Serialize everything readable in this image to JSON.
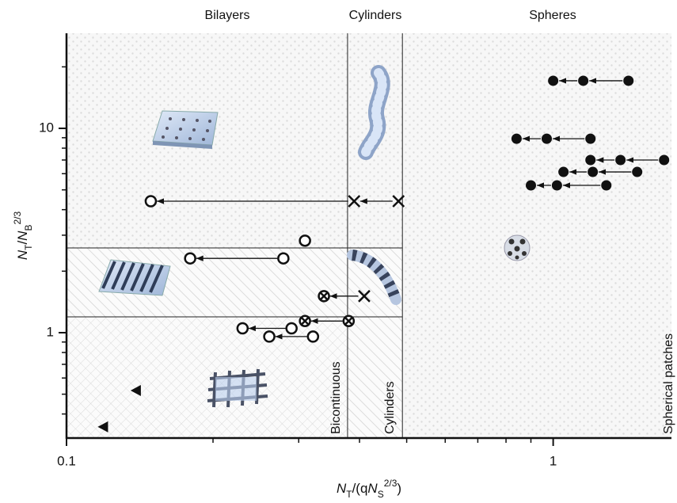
{
  "chart_data": {
    "type": "scatter",
    "xlabel": [
      {
        "text": "N",
        "style": "italic"
      },
      {
        "text": "T",
        "style": "sub"
      },
      {
        "text": "/(q",
        "style": "normal"
      },
      {
        "text": "N",
        "style": "italic"
      },
      {
        "text": "S",
        "style": "sub"
      },
      {
        "text": "2/3",
        "style": "sup"
      },
      {
        "text": ")",
        "style": "normal"
      }
    ],
    "ylabel": [
      {
        "text": "N",
        "style": "italic"
      },
      {
        "text": "T",
        "style": "sub"
      },
      {
        "text": "/",
        "style": "normal"
      },
      {
        "text": "N",
        "style": "italic"
      },
      {
        "text": "B",
        "style": "sub"
      },
      {
        "text": "2/3",
        "style": "sup"
      }
    ],
    "log_x": true,
    "log_y": true,
    "xlim": [
      0.1,
      1.75
    ],
    "ylim": [
      0.305,
      29.2
    ],
    "xticks": [
      0.1,
      1
    ],
    "xminor": [
      0.2,
      0.3,
      0.4,
      0.5,
      0.6,
      0.7,
      0.8,
      0.9
    ],
    "yticks": [
      1,
      10
    ],
    "yminor": [
      0.4,
      0.5,
      0.6,
      0.7,
      0.8,
      0.9,
      2,
      3,
      4,
      5,
      6,
      7,
      8,
      9,
      20
    ],
    "boundaries": {
      "x": [
        0.378,
        0.49
      ],
      "y": [
        1.195,
        2.6
      ]
    },
    "top_labels": [
      "Bilayers",
      "Cylinders",
      "Spheres"
    ],
    "side_labels": [
      "Bicontinuous",
      "Cylinders",
      "Spherical patches"
    ],
    "color": "#111111",
    "series": [
      {
        "x": [
          1.0,
          1.153,
          1.428
        ],
        "y": [
          17.1,
          17.1,
          17.1
        ],
        "markers": [
          "filled-circle",
          "filled-circle",
          "filled-circle"
        ]
      },
      {
        "x": [
          0.841,
          0.97,
          1.193
        ],
        "y": [
          8.9,
          8.9,
          8.9
        ],
        "markers": [
          "filled-circle",
          "filled-circle",
          "filled-circle"
        ]
      },
      {
        "x": [
          1.193,
          1.375,
          1.69
        ],
        "y": [
          7.0,
          7.0,
          7.0
        ],
        "markers": [
          "filled-circle",
          "filled-circle",
          "filled-circle"
        ]
      },
      {
        "x": [
          1.05,
          1.206,
          1.488
        ],
        "y": [
          6.12,
          6.12,
          6.12
        ],
        "markers": [
          "filled-circle",
          "filled-circle",
          "filled-circle"
        ]
      },
      {
        "x": [
          0.9,
          1.018,
          1.286
        ],
        "y": [
          5.26,
          5.26,
          5.26
        ],
        "markers": [
          "filled-circle",
          "filled-circle",
          "filled-circle"
        ]
      },
      {
        "x": [
          0.149,
          0.39,
          0.481
        ],
        "y": [
          4.4,
          4.4,
          4.4
        ],
        "markers": [
          "open-circle",
          "cross",
          "cross"
        ]
      },
      {
        "x": [
          0.309
        ],
        "y": [
          2.82
        ],
        "markers": [
          "open-circle"
        ]
      },
      {
        "x": [
          0.1795,
          0.279
        ],
        "y": [
          2.31,
          2.31
        ],
        "markers": [
          "open-circle",
          "open-circle"
        ]
      },
      {
        "x": [
          0.338,
          0.409
        ],
        "y": [
          1.51,
          1.51
        ],
        "markers": [
          "crossed-circle",
          "cross"
        ]
      },
      {
        "x": [
          0.309,
          0.38
        ],
        "y": [
          1.14,
          1.14
        ],
        "markers": [
          "crossed-circle",
          "crossed-circle"
        ]
      },
      {
        "x": [
          0.23,
          0.29
        ],
        "y": [
          1.05,
          1.05
        ],
        "markers": [
          "open-circle",
          "open-circle"
        ]
      },
      {
        "x": [
          0.261,
          0.321
        ],
        "y": [
          0.957,
          0.957
        ],
        "markers": [
          "open-circle",
          "open-circle"
        ]
      },
      {
        "x": [
          0.139
        ],
        "y": [
          0.521
        ],
        "markers": [
          "filled-triangle-left"
        ]
      },
      {
        "x": [
          0.119
        ],
        "y": [
          0.346
        ],
        "markers": [
          "filled-triangle-left"
        ]
      }
    ]
  }
}
